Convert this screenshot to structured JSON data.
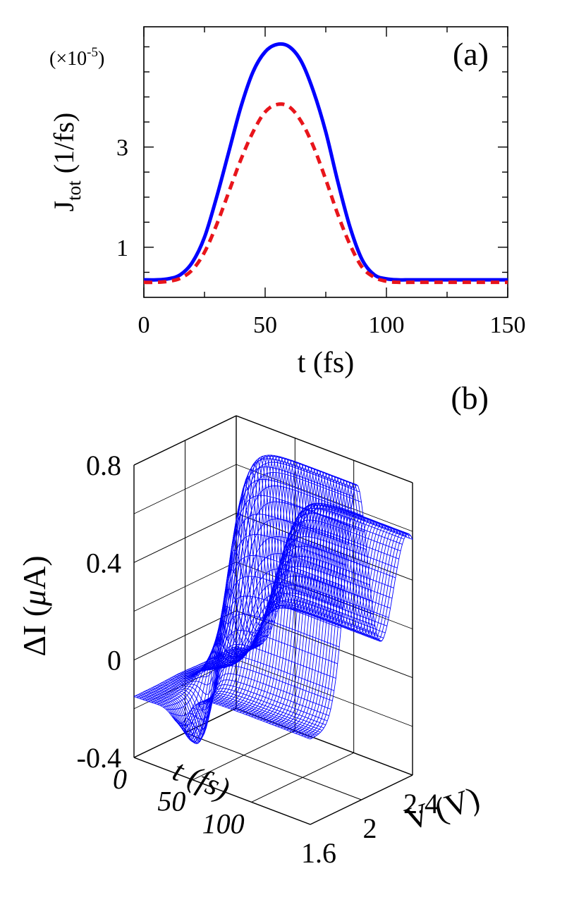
{
  "chart_data": [
    {
      "type": "line",
      "panel_label": "(a)",
      "multiplier_label": "(×10",
      "multiplier_exp": "-5",
      "multiplier_close": ")",
      "ylabel_main": "J",
      "ylabel_sub": "tot",
      "ylabel_unit": " (1/fs)",
      "xlabel": "t (fs)",
      "xlim": [
        0,
        150
      ],
      "ylim": [
        0,
        5.4
      ],
      "x_ticks": [
        0,
        50,
        100,
        150
      ],
      "x_tick_labels": [
        "0",
        "50",
        "100",
        "150"
      ],
      "y_ticks": [
        1,
        3
      ],
      "y_tick_labels": [
        "1",
        "3"
      ],
      "series": [
        {
          "color": "#0000ff",
          "style": "solid",
          "x": [
            0,
            5,
            10,
            15,
            20,
            25,
            30,
            35,
            40,
            45,
            50,
            55,
            60,
            65,
            70,
            75,
            80,
            85,
            90,
            95,
            100,
            105,
            110,
            120,
            130,
            140,
            150
          ],
          "y": [
            0.35,
            0.35,
            0.37,
            0.45,
            0.7,
            1.2,
            2.0,
            2.9,
            3.8,
            4.5,
            4.9,
            5.05,
            5.0,
            4.7,
            4.1,
            3.3,
            2.3,
            1.4,
            0.75,
            0.45,
            0.37,
            0.35,
            0.35,
            0.35,
            0.35,
            0.35,
            0.35
          ]
        },
        {
          "color": "#e8151b",
          "style": "dashed",
          "x": [
            0,
            5,
            10,
            15,
            20,
            25,
            30,
            35,
            40,
            45,
            50,
            55,
            60,
            65,
            70,
            75,
            80,
            85,
            90,
            95,
            100,
            105,
            110,
            120,
            130,
            140,
            150
          ],
          "y": [
            0.3,
            0.3,
            0.32,
            0.38,
            0.55,
            0.9,
            1.45,
            2.1,
            2.75,
            3.3,
            3.7,
            3.85,
            3.8,
            3.5,
            3.0,
            2.35,
            1.65,
            1.05,
            0.6,
            0.4,
            0.32,
            0.3,
            0.3,
            0.3,
            0.3,
            0.3,
            0.3
          ]
        }
      ]
    },
    {
      "type": "surface",
      "panel_label": "(b)",
      "zlabel_prefix": "ΔI (",
      "zlabel_greek": "μ",
      "zlabel_suffix": "A)",
      "xlabel": "t (fs)",
      "ylabel": "V (V)",
      "t_range": [
        0,
        150
      ],
      "v_range": [
        1.6,
        2.4
      ],
      "zlim": [
        -0.4,
        0.8
      ],
      "z_ticks": [
        -0.4,
        0,
        0.4,
        0.8
      ],
      "z_tick_labels": [
        "-0.4",
        "0",
        "0.4",
        "0.8"
      ],
      "t_ticks": [
        0,
        50,
        100
      ],
      "t_tick_labels": [
        "0",
        "50",
        "100"
      ],
      "v_ticks": [
        1.6,
        2.0,
        2.4
      ],
      "v_tick_labels": [
        "1.6",
        "2",
        "2.4"
      ],
      "mesh_color": "#0000ff"
    }
  ]
}
